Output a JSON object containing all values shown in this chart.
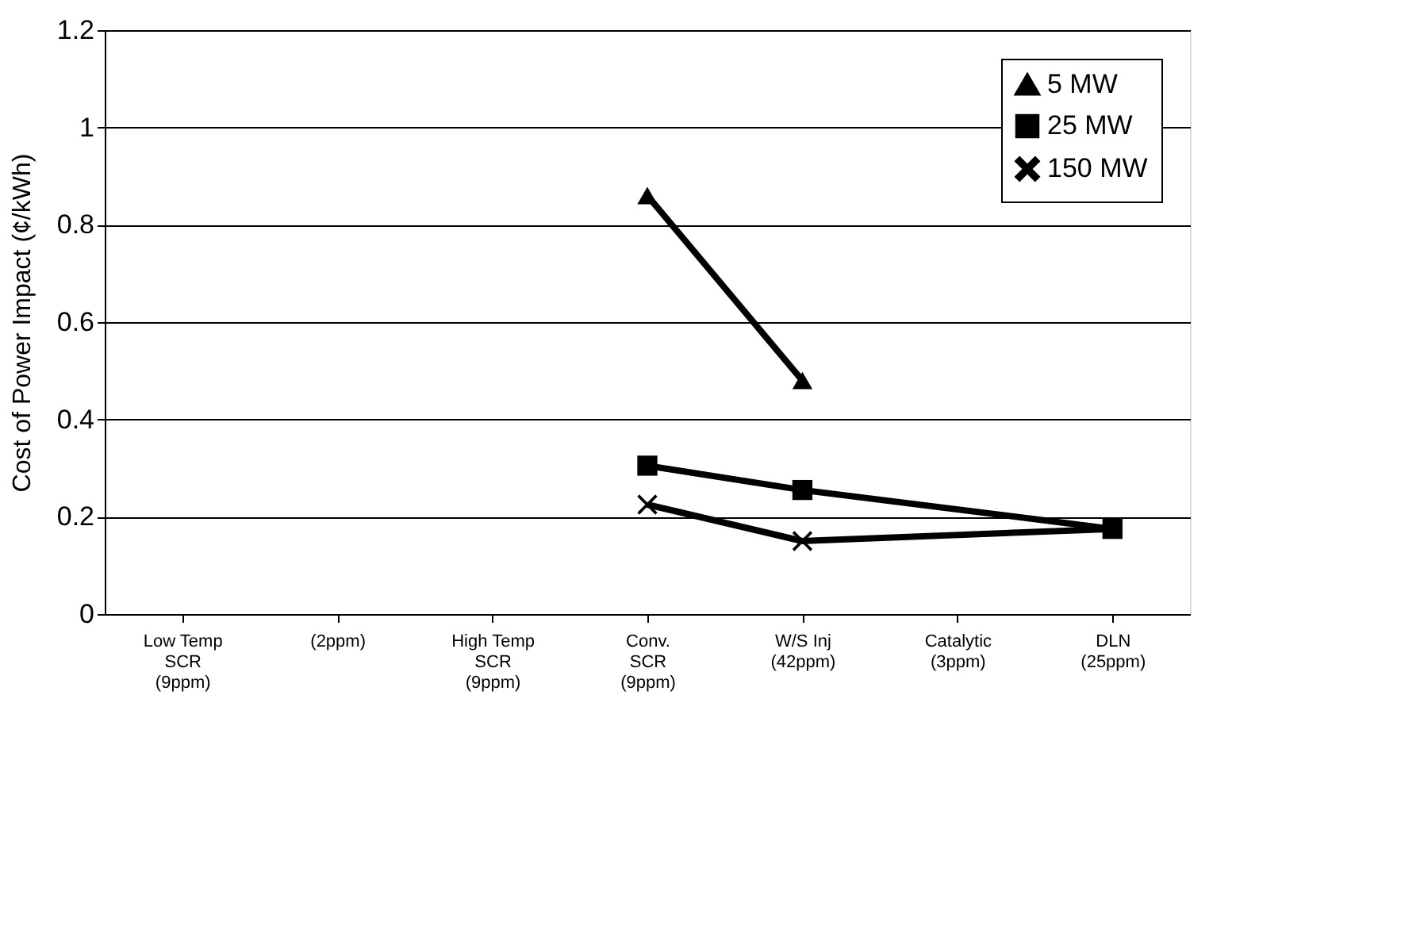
{
  "chart_data": {
    "type": "line",
    "ylabel": "Cost of Power Impact (¢/kWh)",
    "categories": [
      "Low Temp\nSCR\n(9ppm)",
      "(2ppm)",
      "High Temp\nSCR\n(9ppm)",
      "Conv.\nSCR\n(9ppm)",
      "W/S Inj\n(42ppm)",
      "Catalytic\n(3ppm)",
      "DLN\n(25ppm)"
    ],
    "series": [
      {
        "name": "5 MW",
        "color": "#000000",
        "marker": "triangle",
        "values": [
          null,
          null,
          null,
          0.86,
          0.48,
          null,
          null
        ]
      },
      {
        "name": "25 MW",
        "color": "#000000",
        "marker": "square",
        "values": [
          null,
          null,
          null,
          0.305,
          0.255,
          null,
          0.175
        ]
      },
      {
        "name": "150 MW",
        "color": "#000000",
        "marker": "cross",
        "values": [
          null,
          null,
          null,
          0.225,
          0.15,
          null,
          0.175
        ]
      }
    ],
    "ylim": [
      0,
      1.2
    ],
    "yticks": [
      0,
      0.2,
      0.4,
      0.6,
      0.8,
      1,
      1.2
    ],
    "grid": "y",
    "legend": "top right",
    "line_style": "solid"
  }
}
